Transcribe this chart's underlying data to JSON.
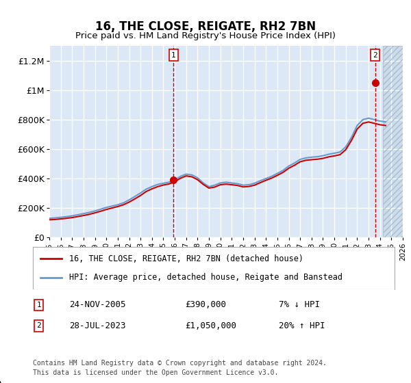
{
  "title": "16, THE CLOSE, REIGATE, RH2 7BN",
  "subtitle": "Price paid vs. HM Land Registry's House Price Index (HPI)",
  "title_fontsize": 13,
  "subtitle_fontsize": 11,
  "bg_color": "#dce8f5",
  "hatch_color": "#c8d8e8",
  "plot_bg": "#dce8f5",
  "grid_color": "#ffffff",
  "xlim": [
    1995,
    2026
  ],
  "ylim": [
    0,
    1300000
  ],
  "yticks": [
    0,
    200000,
    400000,
    600000,
    800000,
    1000000,
    1200000
  ],
  "ytick_labels": [
    "£0",
    "£200K",
    "£400K",
    "£600K",
    "£800K",
    "£1M",
    "£1.2M"
  ],
  "xtick_years": [
    1995,
    1996,
    1997,
    1998,
    1999,
    2000,
    2001,
    2002,
    2003,
    2004,
    2005,
    2006,
    2007,
    2008,
    2009,
    2010,
    2011,
    2012,
    2013,
    2014,
    2015,
    2016,
    2017,
    2018,
    2019,
    2020,
    2021,
    2022,
    2023,
    2024,
    2025,
    2026
  ],
  "sale1_x": 2005.9,
  "sale1_y": 390000,
  "sale2_x": 2023.58,
  "sale2_y": 1050000,
  "sale_color": "#cc0000",
  "line_red_color": "#cc0000",
  "line_blue_color": "#6699cc",
  "hpi_line": {
    "x": [
      1995,
      1995.5,
      1996,
      1996.5,
      1997,
      1997.5,
      1998,
      1998.5,
      1999,
      1999.5,
      2000,
      2000.5,
      2001,
      2001.5,
      2002,
      2002.5,
      2003,
      2003.5,
      2004,
      2004.5,
      2005,
      2005.5,
      2006,
      2006.5,
      2007,
      2007.5,
      2008,
      2008.5,
      2009,
      2009.5,
      2010,
      2010.5,
      2011,
      2011.5,
      2012,
      2012.5,
      2013,
      2013.5,
      2014,
      2014.5,
      2015,
      2015.5,
      2016,
      2016.5,
      2017,
      2017.5,
      2018,
      2018.5,
      2019,
      2019.5,
      2020,
      2020.5,
      2021,
      2021.5,
      2022,
      2022.5,
      2023,
      2023.5,
      2024,
      2024.5
    ],
    "y": [
      130000,
      133000,
      137000,
      141000,
      147000,
      154000,
      162000,
      170000,
      180000,
      192000,
      204000,
      213000,
      222000,
      235000,
      255000,
      278000,
      302000,
      328000,
      345000,
      360000,
      368000,
      375000,
      390000,
      415000,
      430000,
      425000,
      405000,
      370000,
      345000,
      355000,
      370000,
      375000,
      370000,
      365000,
      355000,
      358000,
      368000,
      385000,
      400000,
      415000,
      435000,
      455000,
      485000,
      505000,
      530000,
      540000,
      545000,
      548000,
      555000,
      565000,
      572000,
      580000,
      615000,
      680000,
      760000,
      800000,
      810000,
      800000,
      790000,
      785000
    ]
  },
  "red_line": {
    "x": [
      1995,
      1995.5,
      1996,
      1996.5,
      1997,
      1997.5,
      1998,
      1998.5,
      1999,
      1999.5,
      2000,
      2000.5,
      2001,
      2001.5,
      2002,
      2002.5,
      2003,
      2003.5,
      2004,
      2004.5,
      2005,
      2005.5,
      2006,
      2006.5,
      2007,
      2007.5,
      2008,
      2008.5,
      2009,
      2009.5,
      2010,
      2010.5,
      2011,
      2011.5,
      2012,
      2012.5,
      2013,
      2013.5,
      2014,
      2014.5,
      2015,
      2015.5,
      2016,
      2016.5,
      2017,
      2017.5,
      2018,
      2018.5,
      2019,
      2019.5,
      2020,
      2020.5,
      2021,
      2021.5,
      2022,
      2022.5,
      2023,
      2023.5,
      2024,
      2024.5
    ],
    "y": [
      120000,
      122000,
      126000,
      130000,
      135000,
      142000,
      149000,
      157000,
      167000,
      178000,
      190000,
      200000,
      210000,
      222000,
      240000,
      262000,
      285000,
      312000,
      330000,
      345000,
      356000,
      363000,
      378000,
      402000,
      418000,
      412000,
      392000,
      360000,
      335000,
      342000,
      358000,
      362000,
      358000,
      353000,
      343000,
      346000,
      355000,
      372000,
      388000,
      403000,
      422000,
      442000,
      470000,
      490000,
      514000,
      524000,
      528000,
      531000,
      537000,
      547000,
      554000,
      562000,
      596000,
      659000,
      736000,
      775000,
      784000,
      775000,
      765000,
      760000
    ]
  },
  "legend_label1": "16, THE CLOSE, REIGATE, RH2 7BN (detached house)",
  "legend_label2": "HPI: Average price, detached house, Reigate and Banstead",
  "transaction1_label": "1",
  "transaction1_date": "24-NOV-2005",
  "transaction1_price": "£390,000",
  "transaction1_hpi": "7% ↓ HPI",
  "transaction2_label": "2",
  "transaction2_date": "28-JUL-2023",
  "transaction2_price": "£1,050,000",
  "transaction2_hpi": "20% ↑ HPI",
  "footer": "Contains HM Land Registry data © Crown copyright and database right 2024.\nThis data is licensed under the Open Government Licence v3.0.",
  "future_start": 2024.25
}
